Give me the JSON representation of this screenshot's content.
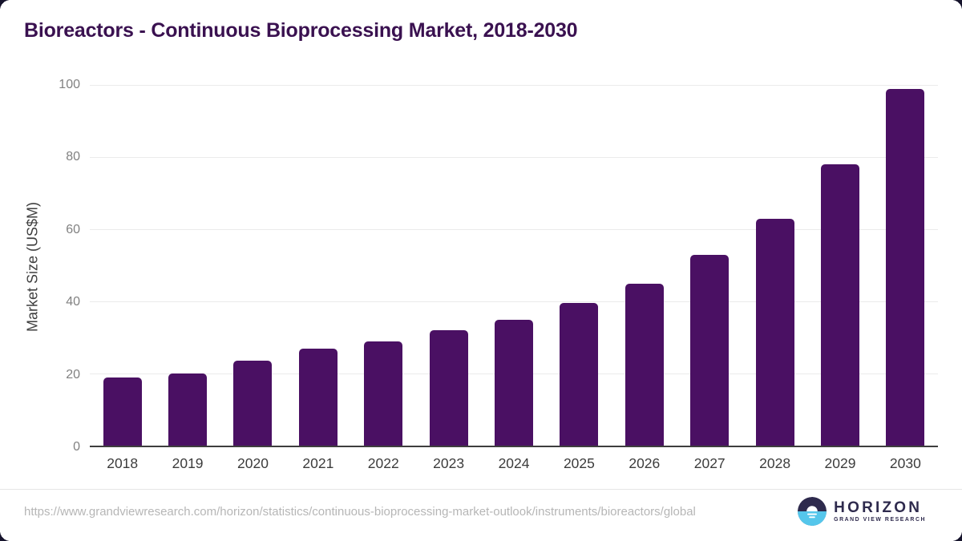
{
  "page": {
    "title": "Bioreactors - Continuous Bioprocessing Market, 2018-2030"
  },
  "chart_data": {
    "type": "bar",
    "title": "Bioreactors - Continuous Bioprocessing Market, 2018-2030",
    "categories": [
      "2018",
      "2019",
      "2020",
      "2021",
      "2022",
      "2023",
      "2024",
      "2025",
      "2026",
      "2027",
      "2028",
      "2029",
      "2030"
    ],
    "values": [
      19,
      20,
      23.5,
      27,
      29,
      32,
      35,
      39.5,
      45,
      53,
      63,
      78,
      99
    ],
    "xlabel": "",
    "ylabel": "Market Size (US$M)",
    "ylim": [
      0,
      100
    ],
    "yticks": [
      0,
      20,
      40,
      60,
      80,
      100
    ],
    "grid": true,
    "legend": false,
    "bar_color": "#4a1063"
  },
  "footer": {
    "source_url": "https://www.grandviewresearch.com/horizon/statistics/continuous-bioprocessing-market-outlook/instruments/bioreactors/global",
    "logo": {
      "brand": "HORIZON",
      "tagline": "GRAND VIEW RESEARCH"
    }
  },
  "colors": {
    "title_text": "#3a1150",
    "bar": "#4a1063",
    "y_tick_text": "#818181",
    "x_tick_text": "#3c3c3c",
    "axis_title_text": "#3f3f3f",
    "gridline": "#ebebeb",
    "baseline": "#3e3e3e",
    "url_text": "#b6b6b6",
    "divider": "#e5e5e5",
    "logo_navy": "#2e2a4d",
    "logo_blue": "#55c6eb"
  }
}
